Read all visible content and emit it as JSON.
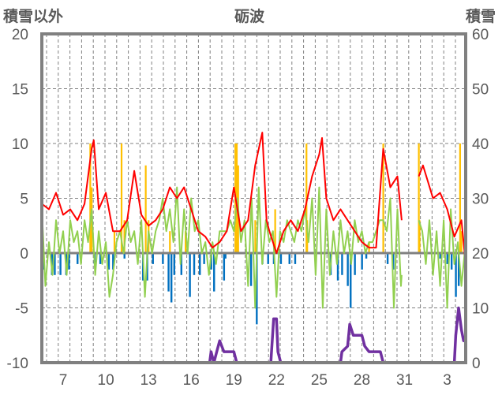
{
  "chart_data": {
    "type": "line",
    "title": "砺波",
    "ylabel_left": "積雪以外",
    "ylabel_right": "積雪",
    "ylim_left": [
      -10,
      20
    ],
    "ylim_right": [
      0,
      60
    ],
    "yticks_left": [
      "20",
      "15",
      "10",
      "5",
      "0",
      "-5",
      "-10"
    ],
    "yticks_right": [
      "60",
      "50",
      "40",
      "30",
      "20",
      "10",
      "0"
    ],
    "xlim_days": [
      5.5,
      35.3
    ],
    "xticks": [
      {
        "day": 7,
        "label": "7"
      },
      {
        "day": 10,
        "label": "10"
      },
      {
        "day": 13,
        "label": "13"
      },
      {
        "day": 16,
        "label": "16"
      },
      {
        "day": 19,
        "label": "19"
      },
      {
        "day": 22,
        "label": "22"
      },
      {
        "day": 25,
        "label": "25"
      },
      {
        "day": 28,
        "label": "28"
      },
      {
        "day": 31,
        "label": "31"
      },
      {
        "day": 34,
        "label": "3"
      }
    ],
    "grid": true,
    "colors": {
      "red": "#ff0000",
      "green": "#92d050",
      "orange": "#ffc000",
      "blue": "#0070c0",
      "purple": "#7030a0",
      "frame": "#808080"
    },
    "series": [
      {
        "name": "red",
        "axis": "left",
        "points": [
          [
            5.5,
            4.5
          ],
          [
            6,
            4
          ],
          [
            6.5,
            5.5
          ],
          [
            7,
            3.5
          ],
          [
            7.5,
            4
          ],
          [
            8,
            3
          ],
          [
            8.5,
            4.5
          ],
          [
            9,
            9.5
          ],
          [
            9.15,
            10.3
          ],
          [
            9.5,
            4
          ],
          [
            10,
            5.5
          ],
          [
            10.5,
            2
          ],
          [
            11,
            2
          ],
          [
            11.5,
            3
          ],
          [
            12,
            7.5
          ],
          [
            12.5,
            3.5
          ],
          [
            13,
            2.5
          ],
          [
            13.5,
            3
          ],
          [
            14,
            4
          ],
          [
            14.5,
            6
          ],
          [
            15,
            5
          ],
          [
            15.5,
            6
          ],
          [
            16,
            4
          ],
          [
            16.5,
            2
          ],
          [
            17,
            1.5
          ],
          [
            17.5,
            0.5
          ],
          [
            18,
            1
          ],
          [
            18.5,
            2
          ],
          [
            19,
            6
          ],
          [
            19.5,
            2
          ],
          [
            20,
            3
          ],
          [
            20.5,
            8
          ],
          [
            21,
            11
          ],
          [
            21.3,
            3
          ],
          [
            21.5,
            2
          ],
          [
            22,
            0
          ],
          [
            22.5,
            2
          ],
          [
            23,
            3
          ],
          [
            23.5,
            2
          ],
          [
            24,
            4
          ],
          [
            24.5,
            7
          ],
          [
            25,
            9
          ],
          [
            25.2,
            10.5
          ],
          [
            25.5,
            5
          ],
          [
            26,
            3
          ],
          [
            26.5,
            4
          ],
          [
            27,
            3
          ],
          [
            27.5,
            2
          ],
          [
            28,
            1
          ],
          [
            28.5,
            0.5
          ],
          [
            29,
            0.5
          ],
          [
            29.5,
            9.5
          ],
          [
            30,
            6
          ],
          [
            30.5,
            7
          ],
          [
            30.8,
            3
          ],
          null,
          [
            32,
            7
          ],
          [
            32.3,
            8
          ],
          [
            33,
            5
          ],
          [
            33.5,
            5.5
          ],
          [
            34,
            4
          ],
          [
            34.5,
            1.5
          ],
          [
            35,
            3
          ],
          [
            35.3,
            -1
          ]
        ]
      },
      {
        "name": "green",
        "axis": "left",
        "points": [
          [
            5.5,
            4
          ],
          [
            5.75,
            -3
          ],
          [
            6,
            1
          ],
          [
            6.25,
            -2
          ],
          [
            6.5,
            3
          ],
          [
            6.75,
            0
          ],
          [
            7,
            2
          ],
          [
            7.25,
            -2
          ],
          [
            7.5,
            3
          ],
          [
            7.75,
            1
          ],
          [
            8,
            2
          ],
          [
            8.25,
            -1
          ],
          [
            8.5,
            3
          ],
          [
            8.75,
            1
          ],
          [
            9,
            4
          ],
          [
            9.25,
            -2
          ],
          [
            9.5,
            2
          ],
          [
            9.75,
            -1
          ],
          [
            10,
            1
          ],
          [
            10.25,
            -4
          ],
          [
            10.5,
            -2
          ],
          [
            10.75,
            1
          ],
          [
            11,
            2
          ],
          [
            11.25,
            0
          ],
          [
            11.5,
            3
          ],
          [
            11.75,
            1
          ],
          [
            12,
            2
          ],
          [
            12.25,
            -1
          ],
          [
            12.5,
            3
          ],
          [
            12.75,
            -4
          ],
          [
            13,
            2
          ],
          [
            13.25,
            0
          ],
          [
            13.5,
            2
          ],
          [
            13.75,
            3
          ],
          [
            14,
            5
          ],
          [
            14.25,
            2
          ],
          [
            14.5,
            4
          ],
          [
            14.75,
            1
          ],
          [
            15,
            6
          ],
          [
            15.25,
            -1
          ],
          [
            15.5,
            4
          ],
          [
            15.75,
            0
          ],
          [
            16,
            5
          ],
          [
            16.25,
            2
          ],
          [
            16.5,
            3
          ],
          [
            16.75,
            0
          ],
          [
            17,
            1
          ],
          [
            17.25,
            -2
          ],
          [
            17.5,
            1
          ],
          [
            17.75,
            -1
          ],
          [
            18,
            2
          ],
          [
            18.25,
            2
          ],
          [
            18.5,
            2
          ],
          [
            18.75,
            3
          ],
          [
            19,
            2
          ],
          [
            19.25,
            5
          ],
          [
            19.5,
            1
          ],
          [
            19.75,
            3
          ],
          [
            20,
            -3
          ],
          [
            20.25,
            5
          ],
          [
            20.5,
            -5
          ],
          [
            20.75,
            6
          ],
          [
            21,
            -1
          ],
          [
            21.25,
            3
          ],
          [
            21.5,
            1
          ],
          [
            21.75,
            2
          ],
          [
            22,
            -4
          ],
          [
            22.25,
            2
          ],
          [
            22.5,
            1
          ],
          [
            22.75,
            3
          ],
          [
            23,
            2
          ],
          [
            23.25,
            1
          ],
          [
            23.5,
            3
          ],
          [
            23.75,
            2
          ],
          [
            24,
            4
          ],
          [
            24.25,
            1
          ],
          [
            24.5,
            5
          ],
          [
            24.75,
            -2
          ],
          [
            25,
            6
          ],
          [
            25.25,
            -5
          ],
          [
            25.5,
            4
          ],
          [
            25.75,
            -2
          ],
          [
            26,
            2
          ],
          [
            26.25,
            -1
          ],
          [
            26.5,
            3
          ],
          [
            26.75,
            0
          ],
          [
            27,
            2
          ],
          [
            27.25,
            -1
          ],
          [
            27.5,
            3
          ],
          [
            27.75,
            1
          ],
          [
            28,
            2
          ],
          [
            28.25,
            0
          ],
          [
            28.5,
            1
          ],
          [
            28.75,
            1
          ],
          [
            29,
            2
          ],
          [
            29.25,
            3
          ],
          [
            29.5,
            3
          ],
          [
            29.75,
            2
          ],
          [
            30,
            5
          ],
          [
            30.25,
            -5
          ],
          [
            30.5,
            4
          ],
          [
            30.75,
            -3
          ],
          [
            30.8,
            -2
          ],
          null,
          [
            32,
            3
          ],
          [
            32.25,
            2
          ],
          [
            32.5,
            -1
          ],
          [
            32.75,
            3
          ],
          [
            33,
            -2
          ],
          [
            33.25,
            2
          ],
          [
            33.5,
            -3
          ],
          [
            33.75,
            3
          ],
          [
            34,
            -5
          ],
          [
            34.25,
            4
          ],
          [
            34.5,
            -1
          ],
          [
            34.75,
            1
          ],
          [
            35,
            -3
          ],
          [
            35.3,
            1
          ]
        ]
      },
      {
        "name": "purple",
        "axis": "right",
        "points": [
          [
            5.5,
            0
          ],
          [
            17.3,
            0
          ],
          [
            17.4,
            2
          ],
          [
            17.6,
            0
          ],
          [
            17.8,
            2
          ],
          [
            18,
            4
          ],
          [
            18.3,
            2
          ],
          [
            19,
            2
          ],
          [
            19.2,
            0
          ],
          [
            21.6,
            0
          ],
          [
            21.8,
            8
          ],
          [
            22,
            8
          ],
          [
            22.1,
            2
          ],
          [
            22.3,
            0
          ],
          [
            26.5,
            0
          ],
          [
            26.6,
            2
          ],
          [
            27,
            3
          ],
          [
            27.15,
            7
          ],
          [
            27.4,
            5
          ],
          [
            28,
            5
          ],
          [
            28.2,
            3
          ],
          [
            28.5,
            2
          ],
          [
            29.3,
            2
          ],
          [
            29.5,
            0
          ],
          [
            30.8,
            0
          ],
          null,
          [
            31.8,
            0
          ],
          [
            34.5,
            0
          ],
          [
            34.6,
            5
          ],
          [
            34.8,
            10
          ],
          [
            35,
            6
          ],
          [
            35.15,
            4
          ],
          [
            35.3,
            4
          ]
        ]
      }
    ],
    "bars_orange": [
      [
        8.9,
        10
      ],
      [
        9.0,
        6
      ],
      [
        10.6,
        2
      ],
      [
        11.1,
        10
      ],
      [
        11.3,
        3
      ],
      [
        12.8,
        8
      ],
      [
        13.0,
        3
      ],
      [
        14.5,
        2
      ],
      [
        15.6,
        2
      ],
      [
        19.1,
        10
      ],
      [
        19.2,
        10
      ],
      [
        19.3,
        8
      ],
      [
        20.5,
        3
      ],
      [
        21.9,
        4
      ],
      [
        24.1,
        10
      ],
      [
        24.15,
        3
      ],
      [
        28.5,
        1
      ],
      [
        29.5,
        10
      ],
      [
        32.0,
        10
      ],
      [
        32.05,
        3
      ],
      [
        34.9,
        10
      ],
      [
        35.0,
        2
      ]
    ],
    "bars_blue": [
      [
        5.6,
        -1.5
      ],
      [
        6.2,
        -2
      ],
      [
        6.4,
        -2
      ],
      [
        6.8,
        -2
      ],
      [
        7.2,
        -2
      ],
      [
        7.4,
        -1.5
      ],
      [
        8.0,
        -1
      ],
      [
        9.2,
        -1
      ],
      [
        9.6,
        -1
      ],
      [
        10.2,
        -1.5
      ],
      [
        10.5,
        -1.5
      ],
      [
        11.3,
        -0.5
      ],
      [
        12.6,
        -2.5
      ],
      [
        12.9,
        -2.5
      ],
      [
        13.3,
        -1
      ],
      [
        14.0,
        -1
      ],
      [
        14.4,
        -3.5
      ],
      [
        14.6,
        -4.5
      ],
      [
        14.8,
        -2
      ],
      [
        15.3,
        -2
      ],
      [
        15.9,
        -4
      ],
      [
        16.2,
        -2
      ],
      [
        16.6,
        -2
      ],
      [
        16.9,
        -1
      ],
      [
        17.4,
        -1.5
      ],
      [
        17.6,
        -3.5
      ],
      [
        18.3,
        -2.5
      ],
      [
        18.4,
        -0.5
      ],
      [
        20.2,
        -3
      ],
      [
        20.6,
        -6.5
      ],
      [
        21.0,
        -1
      ],
      [
        21.4,
        -1
      ],
      [
        21.8,
        -1
      ],
      [
        22.3,
        -1
      ],
      [
        22.9,
        -1
      ],
      [
        23.3,
        -1
      ],
      [
        25.8,
        -2
      ],
      [
        26.3,
        -2.5
      ],
      [
        26.6,
        -2
      ],
      [
        27.0,
        -3
      ],
      [
        27.2,
        -5
      ],
      [
        27.5,
        -2
      ],
      [
        28.0,
        -1.5
      ],
      [
        28.3,
        -0.5
      ],
      [
        29.8,
        -1
      ],
      [
        30.2,
        -1.5
      ],
      [
        33.5,
        -0.5
      ],
      [
        34.0,
        -1
      ],
      [
        34.3,
        -1.5
      ],
      [
        34.6,
        -4
      ],
      [
        34.8,
        -3
      ]
    ]
  }
}
